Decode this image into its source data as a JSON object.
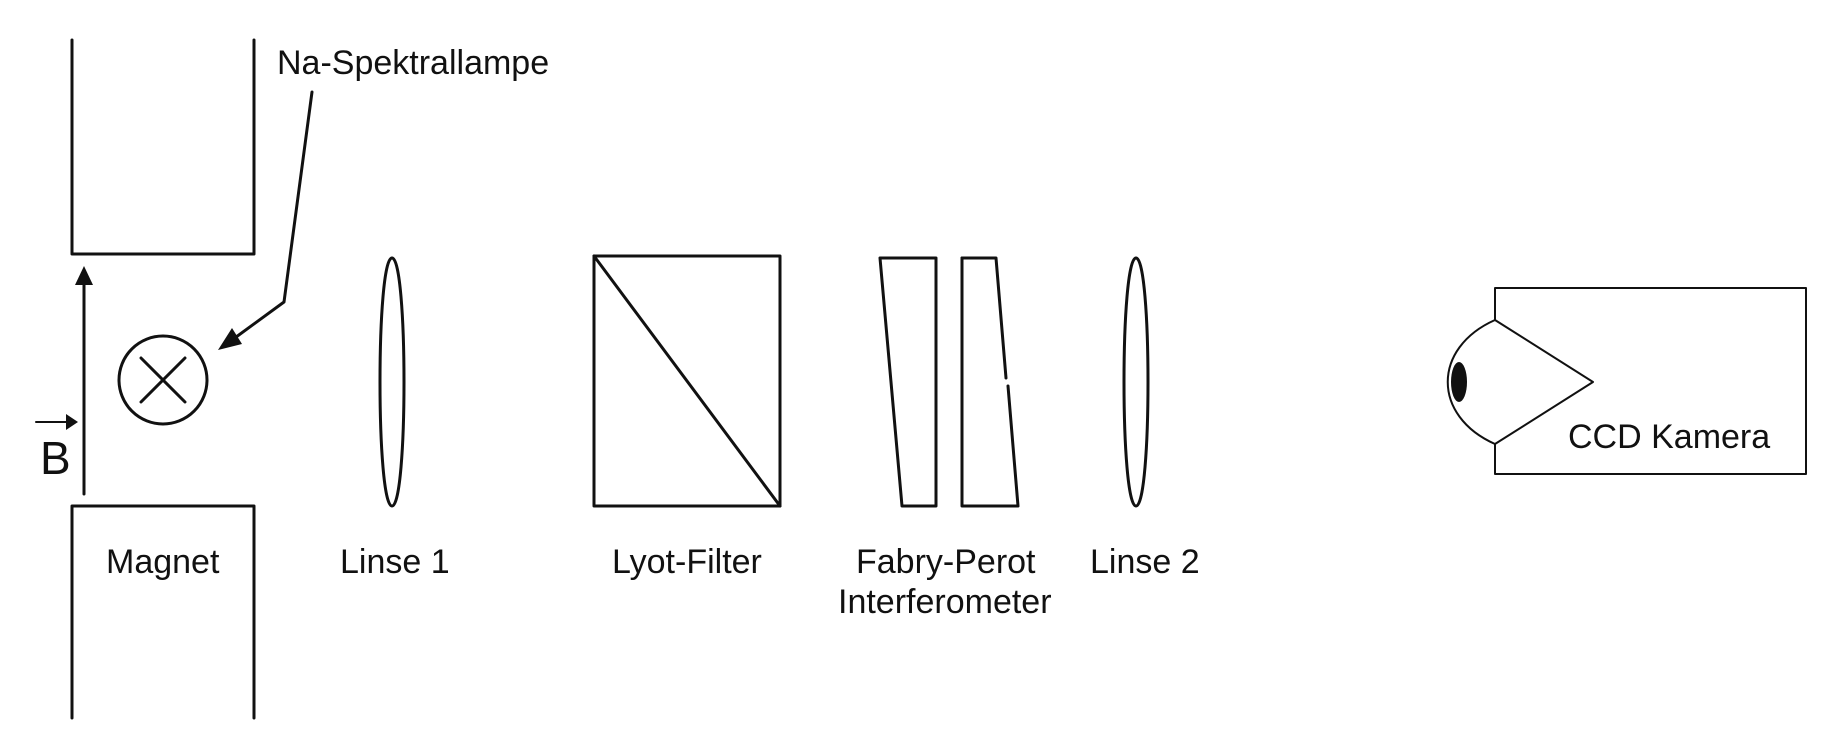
{
  "labels": {
    "lamp": "Na-Spektrallampe",
    "field_symbol": "B",
    "magnet": "Magnet",
    "lens1": "Linse 1",
    "lyot_filter": "Lyot-Filter",
    "fabry_perot_line1": "Fabry-Perot",
    "fabry_perot_line2": "Interferometer",
    "lens2": "Linse 2",
    "camera": "CCD Kamera"
  },
  "colors": {
    "line": "#111111",
    "background": "#ffffff"
  }
}
